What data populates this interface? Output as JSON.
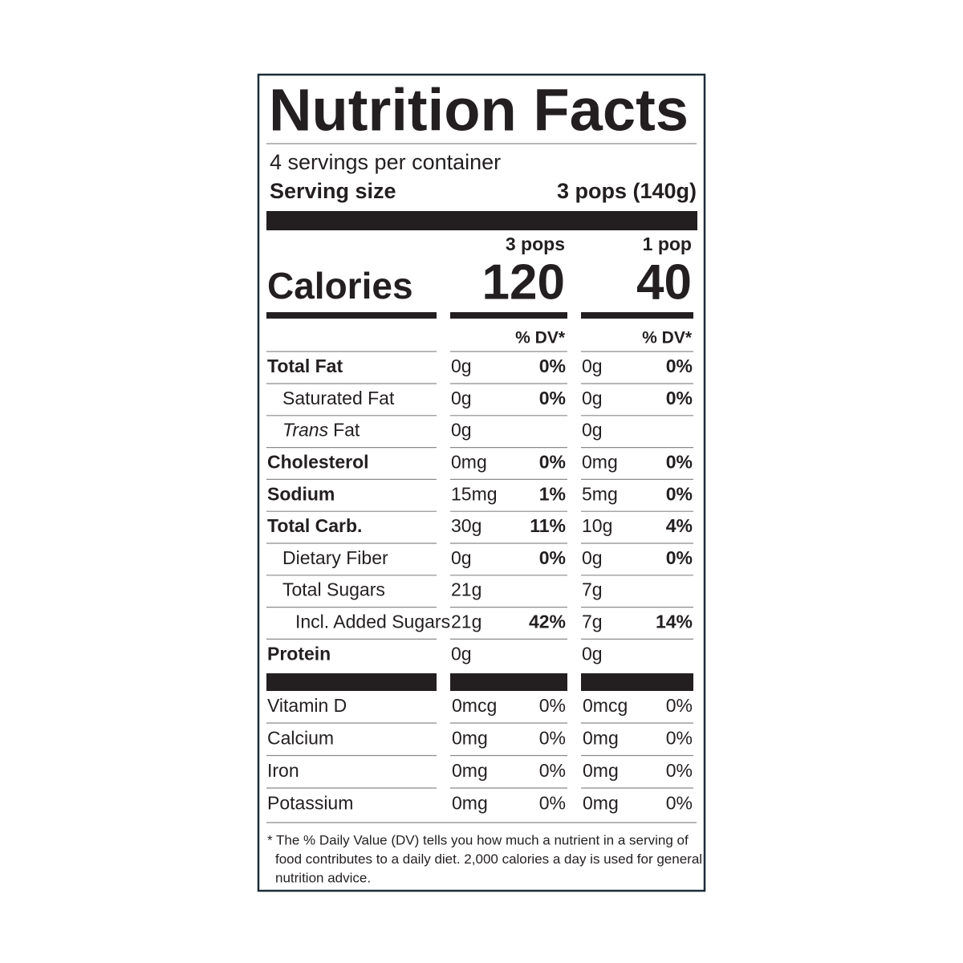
{
  "title": "Nutrition Facts",
  "servings": "4 servings per container",
  "serving_size_label": "Serving size",
  "serving_size": "3 pops (140g)",
  "columns": [
    {
      "header": "3 pops",
      "calories": "120",
      "dv_header": "% DV*"
    },
    {
      "header": "1 pop",
      "calories": "40",
      "dv_header": "% DV*"
    }
  ],
  "calories_label": "Calories",
  "nutrients": [
    {
      "name": "Total Fat",
      "indent": 0,
      "bold": true,
      "values": [
        {
          "amount": "0g",
          "dv": "0%"
        },
        {
          "amount": "0g",
          "dv": "0%"
        }
      ]
    },
    {
      "name": "Saturated Fat",
      "indent": 1,
      "bold": false,
      "values": [
        {
          "amount": "0g",
          "dv": "0%"
        },
        {
          "amount": "0g",
          "dv": "0%"
        }
      ]
    },
    {
      "name_italic": "Trans",
      "name": "Fat",
      "indent": 1,
      "bold": false,
      "values": [
        {
          "amount": "0g"
        },
        {
          "amount": "0g"
        }
      ]
    },
    {
      "name": "Cholesterol",
      "indent": 0,
      "bold": true,
      "values": [
        {
          "amount": "0mg",
          "dv": "0%"
        },
        {
          "amount": "0mg",
          "dv": "0%"
        }
      ]
    },
    {
      "name": "Sodium",
      "indent": 0,
      "bold": true,
      "values": [
        {
          "amount": "15mg",
          "dv": "1%"
        },
        {
          "amount": "5mg",
          "dv": "0%"
        }
      ]
    },
    {
      "name": "Total Carb.",
      "indent": 0,
      "bold": true,
      "values": [
        {
          "amount": "30g",
          "dv": "11%"
        },
        {
          "amount": "10g",
          "dv": "4%"
        }
      ]
    },
    {
      "name": "Dietary Fiber",
      "indent": 1,
      "bold": false,
      "values": [
        {
          "amount": "0g",
          "dv": "0%"
        },
        {
          "amount": "0g",
          "dv": "0%"
        }
      ]
    },
    {
      "name": "Total Sugars",
      "indent": 1,
      "bold": false,
      "values": [
        {
          "amount": "21g"
        },
        {
          "amount": "7g"
        }
      ]
    },
    {
      "name": "Incl. Added Sugars",
      "indent": 2,
      "bold": false,
      "values": [
        {
          "amount": "21g",
          "dv": "42%"
        },
        {
          "amount": "7g",
          "dv": "14%"
        }
      ]
    },
    {
      "name": "Protein",
      "indent": 0,
      "bold": true,
      "values": [
        {
          "amount": "0g"
        },
        {
          "amount": "0g"
        }
      ]
    }
  ],
  "vitamins": [
    {
      "name": "Vitamin D",
      "values": [
        {
          "amount": "0mcg",
          "dv": "0%"
        },
        {
          "amount": "0mcg",
          "dv": "0%"
        }
      ]
    },
    {
      "name": "Calcium",
      "values": [
        {
          "amount": "0mg",
          "dv": "0%"
        },
        {
          "amount": "0mg",
          "dv": "0%"
        }
      ]
    },
    {
      "name": "Iron",
      "values": [
        {
          "amount": "0mg",
          "dv": "0%"
        },
        {
          "amount": "0mg",
          "dv": "0%"
        }
      ]
    },
    {
      "name": "Potassium",
      "values": [
        {
          "amount": "0mg",
          "dv": "0%"
        },
        {
          "amount": "0mg",
          "dv": "0%"
        }
      ]
    }
  ],
  "footnote": [
    "* The % Daily Value (DV) tells you how much a nutrient in a serving of",
    "food contributes to a daily diet. 2,000 calories a day is used for general",
    "nutrition advice."
  ]
}
